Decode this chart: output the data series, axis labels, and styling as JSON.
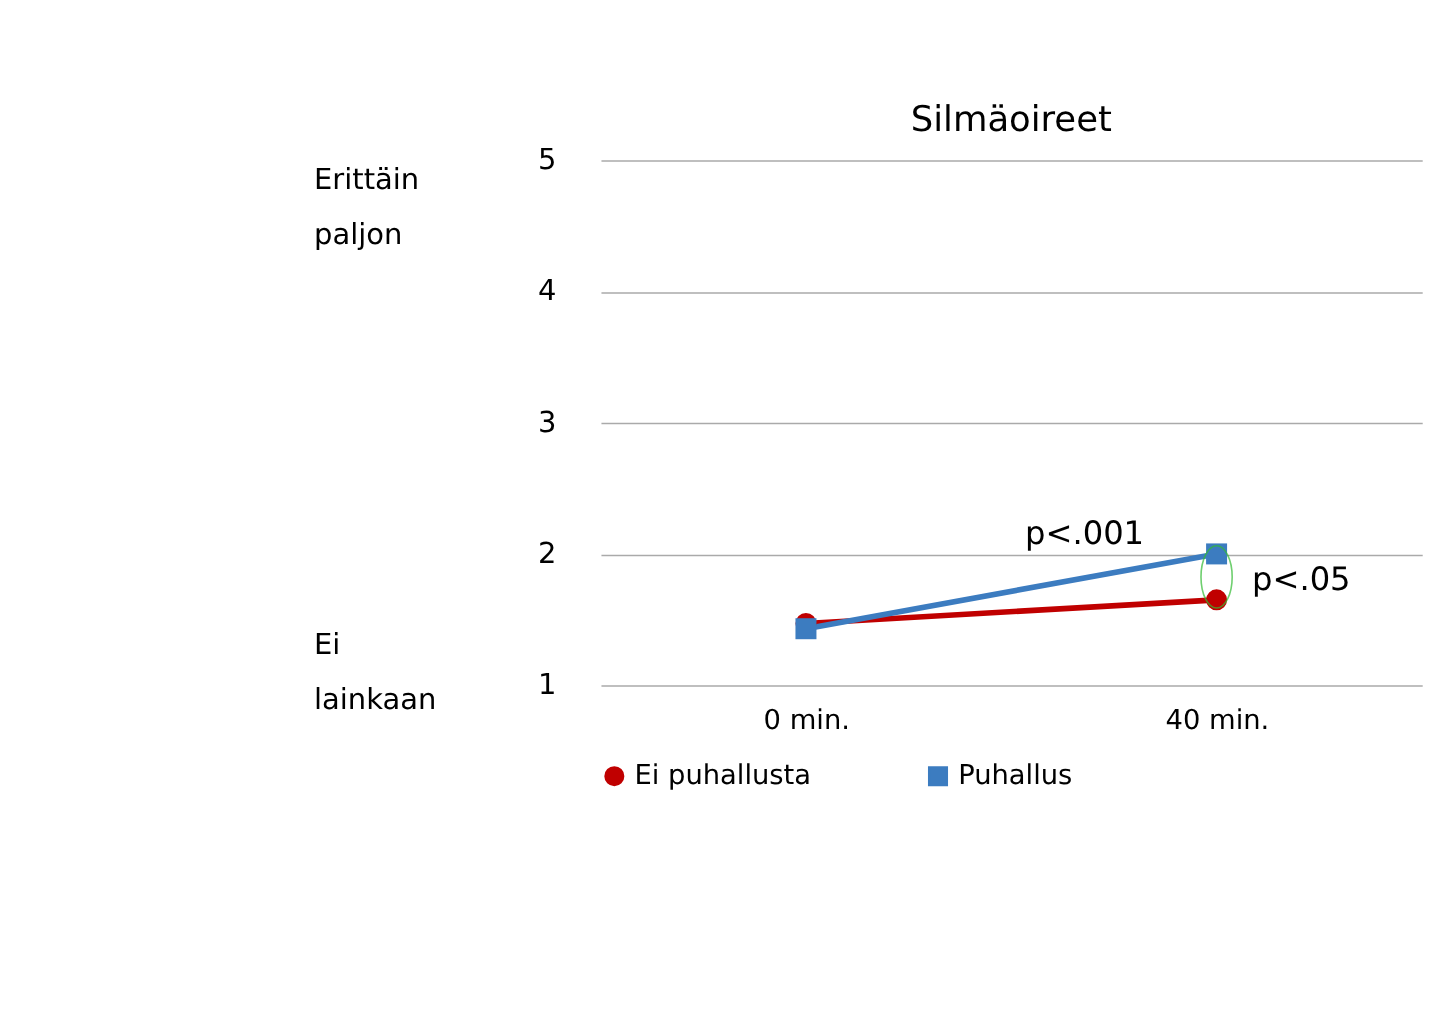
{
  "chart_data": {
    "type": "line",
    "title": "Silmäoireet",
    "categories": [
      "0 min.",
      "40 min."
    ],
    "series": [
      {
        "name": "Ei puhallusta",
        "color": "#c00000",
        "marker": "circle",
        "values": [
          1.47,
          1.65
        ]
      },
      {
        "name": "Puhallus",
        "color": "#3c7cc0",
        "marker": "square",
        "values": [
          1.43,
          2.0
        ]
      }
    ],
    "ylim": [
      1,
      5
    ],
    "yticks": [
      1,
      2,
      3,
      4,
      5
    ],
    "grid": "y",
    "legend": "bottom",
    "line_style": "solid",
    "annotations": [
      "Erittäin paljon",
      "Ei lainkaan",
      {
        "text": "p<.001",
        "x": "40 min.",
        "y": 2.15
      },
      {
        "text": "p<.05",
        "x": "40 min.",
        "y": 1.8
      }
    ]
  }
}
